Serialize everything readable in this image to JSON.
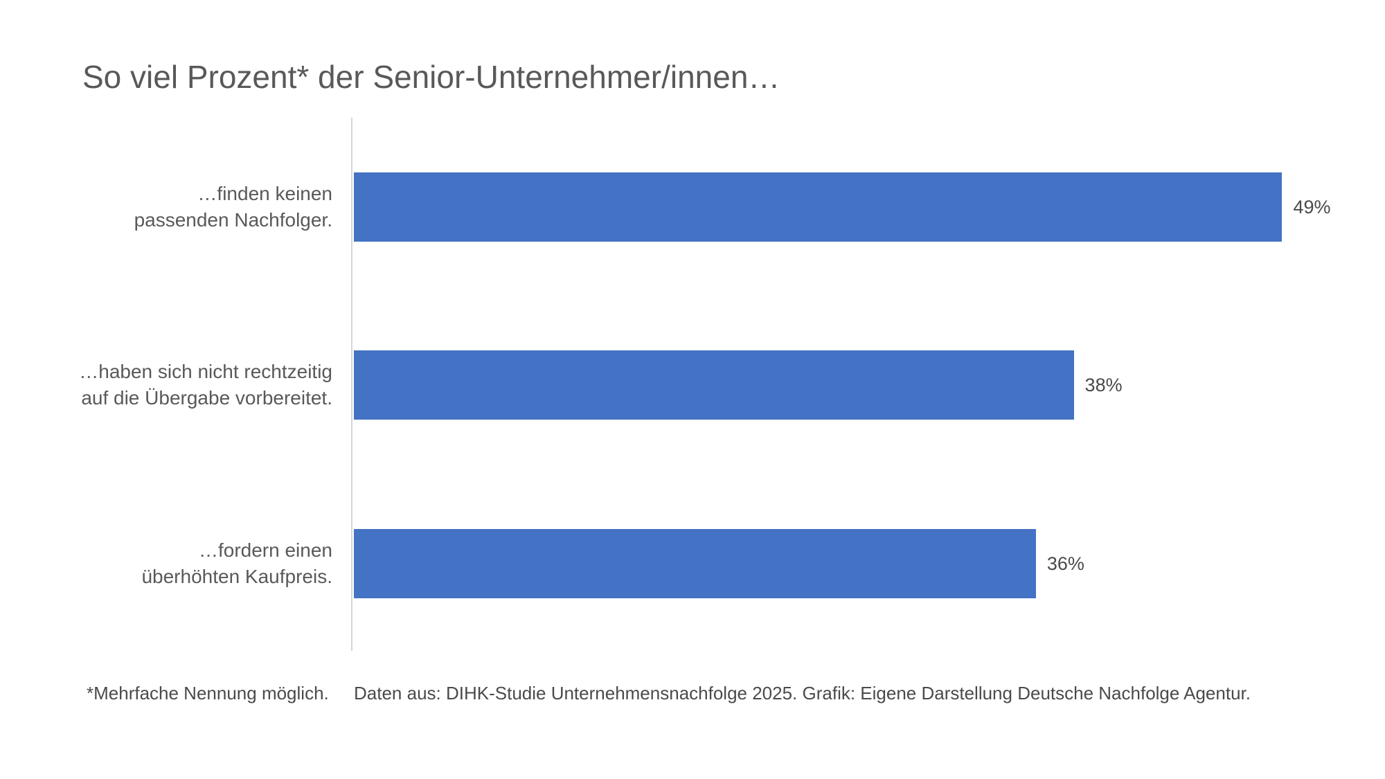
{
  "title": "So viel Prozent* der Senior-Unternehmer/innen…",
  "footnote": "*Mehrfache Nennung möglich.",
  "source": "Daten aus: DIHK-Studie Unternehmensnachfolge 2025. Grafik: Eigene Darstellung Deutsche Nachfolge Agentur.",
  "colors": {
    "bar": "#4472C4",
    "title_text": "#595959",
    "label_text": "#595959",
    "axis_line": "#d6d6d6"
  },
  "chart_data": {
    "type": "bar",
    "orientation": "horizontal",
    "title": "So viel Prozent* der Senior-Unternehmer/innen…",
    "categories": [
      "…finden keinen\npassenden Nachfolger.",
      "…haben sich nicht rechtzeitig\nauf die Übergabe vorbereitet.",
      "…fordern einen\nüberhöhten Kaufpreis."
    ],
    "values": [
      49,
      38,
      36
    ],
    "value_labels": [
      "49%",
      "38%",
      "36%"
    ],
    "xlabel": "",
    "ylabel": "",
    "xlim": [
      0,
      54.1
    ],
    "grid": false,
    "legend": false,
    "data_labels_position": "outside-end"
  }
}
